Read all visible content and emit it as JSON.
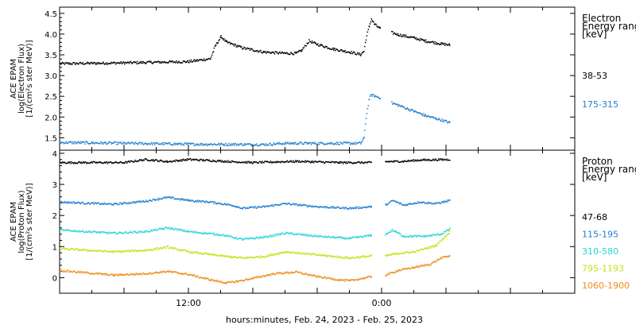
{
  "chart_data": [
    {
      "type": "scatter",
      "ylabel_lines": [
        "ACE EPAM",
        "log(Electron Flux)",
        "[1/(cm²s ster MeV)]"
      ],
      "ylim": [
        1.2,
        4.65
      ],
      "yticks": [
        1.5,
        2.0,
        2.5,
        3.0,
        3.5,
        4.0,
        4.5
      ],
      "legend_title_lines": [
        "Electron",
        "Energy ranges",
        "[keV]"
      ],
      "series": [
        {
          "name": "38-53",
          "color": "#000000",
          "segments": [
            [
              [
                0,
                3.3
              ],
              [
                6,
                3.32
              ],
              [
                12,
                3.35
              ],
              [
                14,
                3.42
              ],
              [
                14.5,
                3.75
              ],
              [
                15,
                3.95
              ],
              [
                15.5,
                3.82
              ],
              [
                17,
                3.68
              ],
              [
                19,
                3.58
              ],
              [
                21,
                3.55
              ],
              [
                22,
                3.55
              ],
              [
                22.5,
                3.62
              ],
              [
                23.2,
                3.85
              ],
              [
                23.8,
                3.78
              ],
              [
                25.5,
                3.65
              ],
              [
                27,
                3.58
              ],
              [
                28,
                3.52
              ],
              [
                28.3,
                3.6
              ],
              [
                28.5,
                3.9
              ],
              [
                28.8,
                4.2
              ],
              [
                29,
                4.38
              ],
              [
                29.3,
                4.25
              ],
              [
                29.8,
                4.15
              ]
            ],
            [
              [
                30.9,
                4.05
              ],
              [
                31.5,
                4.0
              ],
              [
                33,
                3.92
              ],
              [
                34,
                3.85
              ],
              [
                35.5,
                3.78
              ],
              [
                36.3,
                3.75
              ]
            ]
          ]
        },
        {
          "name": "175-315",
          "color": "#1e7fd0",
          "segments": [
            [
              [
                0,
                1.4
              ],
              [
                6,
                1.38
              ],
              [
                12,
                1.36
              ],
              [
                19,
                1.35
              ],
              [
                21,
                1.38
              ],
              [
                28,
                1.38
              ],
              [
                28.3,
                1.5
              ],
              [
                28.5,
                2.0
              ],
              [
                28.8,
                2.45
              ],
              [
                29,
                2.55
              ],
              [
                29.3,
                2.52
              ],
              [
                29.8,
                2.48
              ]
            ],
            [
              [
                30.9,
                2.35
              ],
              [
                31.5,
                2.3
              ],
              [
                33,
                2.15
              ],
              [
                34,
                2.05
              ],
              [
                35,
                1.98
              ],
              [
                36.3,
                1.88
              ]
            ]
          ]
        }
      ]
    },
    {
      "type": "scatter",
      "ylabel_lines": [
        "ACE EPAM",
        "log(Proton Flux)",
        "[1/(cm²s ster MeV)]"
      ],
      "ylim": [
        -0.5,
        4.1
      ],
      "yticks": [
        0,
        1,
        2,
        3,
        4
      ],
      "legend_title_lines": [
        "Proton",
        "Energy ranges",
        "[keV]"
      ],
      "series": [
        {
          "name": "47-68",
          "color": "#000000",
          "segments": [
            [
              [
                0,
                3.72
              ],
              [
                6,
                3.72
              ],
              [
                8,
                3.82
              ],
              [
                10,
                3.75
              ],
              [
                12,
                3.82
              ],
              [
                16,
                3.75
              ],
              [
                18,
                3.72
              ],
              [
                22,
                3.76
              ],
              [
                26,
                3.72
              ],
              [
                29,
                3.72
              ]
            ],
            [
              [
                30.3,
                3.75
              ],
              [
                32,
                3.76
              ],
              [
                33.5,
                3.8
              ],
              [
                36.3,
                3.82
              ]
            ]
          ]
        },
        {
          "name": "115-195",
          "color": "#1e7fd0",
          "segments": [
            [
              [
                0,
                2.45
              ],
              [
                5,
                2.38
              ],
              [
                8,
                2.48
              ],
              [
                10,
                2.6
              ],
              [
                12,
                2.5
              ],
              [
                14,
                2.45
              ],
              [
                16,
                2.35
              ],
              [
                17,
                2.25
              ],
              [
                19,
                2.3
              ],
              [
                21,
                2.4
              ],
              [
                24,
                2.3
              ],
              [
                27,
                2.25
              ],
              [
                29,
                2.3
              ]
            ],
            [
              [
                30.3,
                2.35
              ],
              [
                31,
                2.5
              ],
              [
                32,
                2.35
              ],
              [
                33.5,
                2.45
              ],
              [
                35,
                2.4
              ],
              [
                36.3,
                2.5
              ]
            ]
          ]
        },
        {
          "name": "310-580",
          "color": "#2ad4d8",
          "segments": [
            [
              [
                0,
                1.55
              ],
              [
                5,
                1.45
              ],
              [
                8,
                1.5
              ],
              [
                10,
                1.62
              ],
              [
                12,
                1.5
              ],
              [
                15,
                1.4
              ],
              [
                17,
                1.25
              ],
              [
                19,
                1.32
              ],
              [
                21,
                1.45
              ],
              [
                24,
                1.35
              ],
              [
                27,
                1.28
              ],
              [
                29,
                1.38
              ]
            ],
            [
              [
                30.3,
                1.4
              ],
              [
                31,
                1.55
              ],
              [
                32,
                1.35
              ],
              [
                34,
                1.35
              ],
              [
                35.5,
                1.42
              ],
              [
                36.3,
                1.58
              ]
            ]
          ]
        },
        {
          "name": "795-1193",
          "color": "#c8e01a",
          "segments": [
            [
              [
                0,
                0.95
              ],
              [
                5,
                0.85
              ],
              [
                8,
                0.9
              ],
              [
                10,
                1.0
              ],
              [
                12,
                0.85
              ],
              [
                15,
                0.72
              ],
              [
                17,
                0.65
              ],
              [
                19,
                0.7
              ],
              [
                21,
                0.85
              ],
              [
                24,
                0.75
              ],
              [
                27,
                0.65
              ],
              [
                29,
                0.72
              ]
            ],
            [
              [
                30.3,
                0.72
              ],
              [
                31.5,
                0.8
              ],
              [
                33,
                0.85
              ],
              [
                35,
                1.05
              ],
              [
                36.3,
                1.48
              ]
            ]
          ]
        },
        {
          "name": "1060-1900",
          "color": "#f08c1a",
          "segments": [
            [
              [
                0,
                0.25
              ],
              [
                5,
                0.1
              ],
              [
                8,
                0.15
              ],
              [
                10,
                0.22
              ],
              [
                12,
                0.12
              ],
              [
                14,
                -0.05
              ],
              [
                15.5,
                -0.15
              ],
              [
                16.5,
                -0.1
              ],
              [
                18,
                0.0
              ],
              [
                20,
                0.15
              ],
              [
                22,
                0.2
              ],
              [
                24,
                0.05
              ],
              [
                26,
                -0.05
              ],
              [
                27,
                -0.08
              ],
              [
                29,
                0.05
              ]
            ],
            [
              [
                30.3,
                0.1
              ],
              [
                31.5,
                0.25
              ],
              [
                33,
                0.35
              ],
              [
                34.5,
                0.45
              ],
              [
                35.5,
                0.65
              ],
              [
                36.3,
                0.72
              ]
            ]
          ]
        }
      ]
    }
  ],
  "x_axis": {
    "tick_labels": [
      {
        "x": 12,
        "label": "12:00"
      },
      {
        "x": 30,
        "label": "0:00"
      }
    ],
    "caption": "hours:minutes, Feb. 24, 2023 - Feb. 25, 2023"
  }
}
